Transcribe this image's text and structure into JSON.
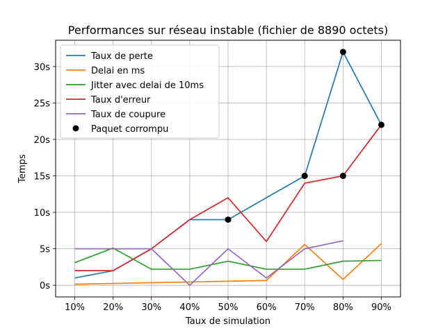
{
  "chart_data": {
    "type": "line",
    "title": "Performances sur réseau instable (fichier de 8890 octets)",
    "xlabel": "Taux de simulation",
    "ylabel": "Temps",
    "categories": [
      "10%",
      "20%",
      "30%",
      "40%",
      "50%",
      "60%",
      "70%",
      "80%",
      "90%"
    ],
    "y_ticks": [
      0,
      5,
      10,
      15,
      20,
      25,
      30
    ],
    "y_tick_labels": [
      "0s",
      "5s",
      "10s",
      "15s",
      "20s",
      "25s",
      "30s"
    ],
    "ylim": [
      -1.6,
      33.6
    ],
    "grid": true,
    "legend_position": "top-left",
    "series": [
      {
        "name": "Taux de perte",
        "color": "#1f77b4",
        "values": [
          1,
          2,
          5,
          9,
          9,
          12,
          15,
          32,
          22
        ]
      },
      {
        "name": "Delai en ms",
        "color": "#ff7f0e",
        "values": [
          0.15,
          0.25,
          0.35,
          0.45,
          0.55,
          0.65,
          5.6,
          0.8,
          5.7
        ]
      },
      {
        "name": "Jitter avec delai de 10ms",
        "color": "#2ca02c",
        "values": [
          3.1,
          5.1,
          2.2,
          2.2,
          3.3,
          2.2,
          2.2,
          3.3,
          3.4
        ]
      },
      {
        "name": "Taux d'erreur",
        "color": "#d62728",
        "values": [
          2,
          2,
          5,
          9,
          12,
          6,
          14,
          15,
          22
        ]
      },
      {
        "name": "Taux de coupure",
        "color": "#9467bd",
        "values": [
          5,
          5,
          5,
          0,
          5,
          1,
          5,
          6.1,
          null
        ]
      }
    ],
    "scatter": {
      "name": "Paquet corrompu",
      "color": "#000000",
      "points": [
        {
          "x": "50%",
          "y": 9
        },
        {
          "x": "70%",
          "y": 15
        },
        {
          "x": "80%",
          "y": 32
        },
        {
          "x": "80%",
          "y": 15
        },
        {
          "x": "90%",
          "y": 22
        }
      ]
    }
  }
}
